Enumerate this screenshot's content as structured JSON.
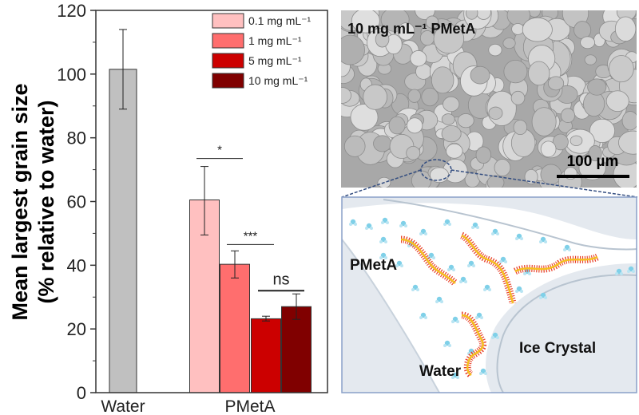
{
  "chart_data": {
    "type": "bar",
    "title": "",
    "ylabel_line1": "Mean largest grain size",
    "ylabel_line2": "(% relative to water)",
    "xlabel": "",
    "ylim": [
      0,
      120
    ],
    "yticks": [
      "0",
      "20",
      "40",
      "60",
      "80",
      "100",
      "120"
    ],
    "groups": [
      "Water",
      "PMetA"
    ],
    "legend_position": "top-right",
    "series": [
      {
        "name": "Water",
        "group": "Water",
        "value": 101.5,
        "err_low": 89,
        "err_high": 114,
        "color": "#c0c0c0"
      },
      {
        "name": "0.1 mg mL⁻¹",
        "group": "PMetA",
        "value": 60.5,
        "err_low": 49.5,
        "err_high": 71,
        "color": "#ffc0c0"
      },
      {
        "name": "1 mg mL⁻¹",
        "group": "PMetA",
        "value": 40.3,
        "err_low": 36,
        "err_high": 44.5,
        "color": "#ff6e6e"
      },
      {
        "name": "5 mg mL⁻¹",
        "group": "PMetA",
        "value": 23.2,
        "err_low": 22.5,
        "err_high": 24,
        "color": "#cc0000"
      },
      {
        "name": "10 mg mL⁻¹",
        "group": "PMetA",
        "value": 27,
        "err_low": 23,
        "err_high": 31,
        "color": "#800000"
      }
    ],
    "significance": [
      {
        "label": "*",
        "from": 1,
        "to": 2,
        "level": 73.5
      },
      {
        "label": "***",
        "from": 2,
        "to": 3,
        "level": 46.5
      },
      {
        "label": "ns",
        "from": 3,
        "to": 4,
        "level": 32
      }
    ]
  },
  "micrograph": {
    "label": "10 mg mL⁻¹ PMetA",
    "scale_bar": "100 µm"
  },
  "schematic": {
    "labels": {
      "polymer": "PMetA",
      "water": "Water",
      "ice": "Ice Crystal"
    },
    "water_color": "#7fd0e8",
    "chain_color": "#e8402a",
    "backbone_color": "#f5c020"
  }
}
